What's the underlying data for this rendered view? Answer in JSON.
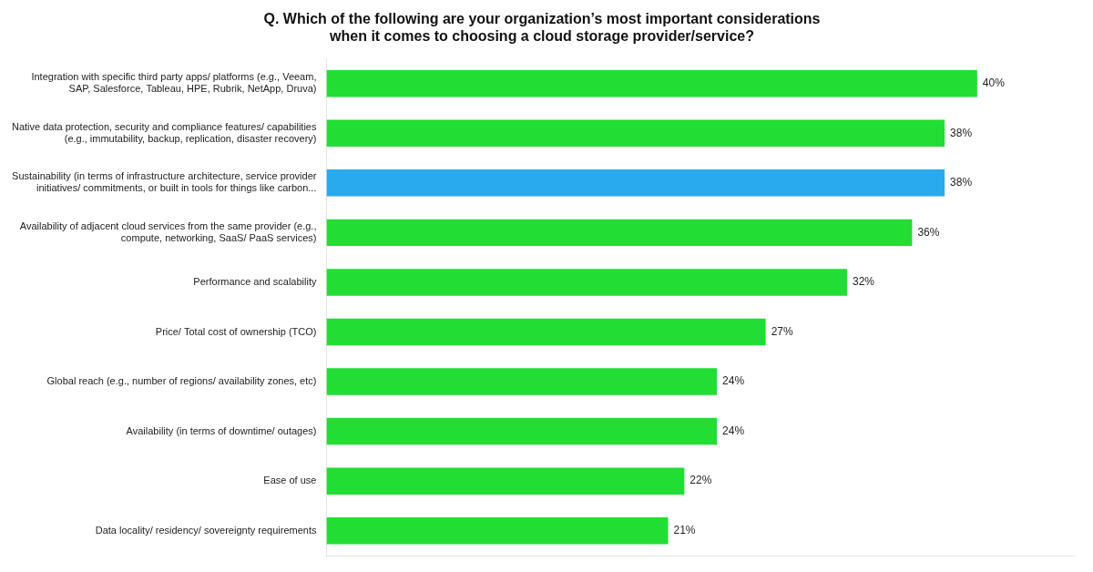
{
  "chart_data": {
    "type": "bar",
    "orientation": "horizontal",
    "title": "Q. Which of the following are your organization’s most important considerations\nwhen it comes to choosing a cloud storage provider/service?",
    "categories": [
      "Integration with specific third party apps/ platforms (e.g., Veeam,\nSAP, Salesforce, Tableau, HPE, Rubrik, NetApp, Druva)",
      "Native data protection, security and compliance features/ capabilities\n(e.g., immutability, backup, replication, disaster recovery)",
      "Sustainability (in terms of infrastructure architecture, service provider\ninitiatives/ commitments, or built in tools for things like carbon...",
      "Availability of adjacent cloud services from the same provider (e.g.,\ncompute, networking, SaaS/ PaaS services)",
      "Performance and scalability",
      "Price/ Total cost of ownership (TCO)",
      "Global reach (e.g., number of regions/ availability zones, etc)",
      "Availability (in terms of downtime/ outages)",
      "Ease of use",
      "Data locality/ residency/ sovereignty requirements"
    ],
    "values": [
      40,
      38,
      38,
      36,
      32,
      27,
      24,
      24,
      22,
      21
    ],
    "value_labels": [
      "40%",
      "38%",
      "38%",
      "36%",
      "32%",
      "27%",
      "24%",
      "24%",
      "22%",
      "21%"
    ],
    "colors": [
      "#22dd33",
      "#22dd33",
      "#29aaee",
      "#22dd33",
      "#22dd33",
      "#22dd33",
      "#22dd33",
      "#22dd33",
      "#22dd33",
      "#22dd33"
    ],
    "xlim": [
      0,
      46
    ],
    "xticks": [],
    "tick_labels": "y",
    "grid": false,
    "data_labels": true
  }
}
